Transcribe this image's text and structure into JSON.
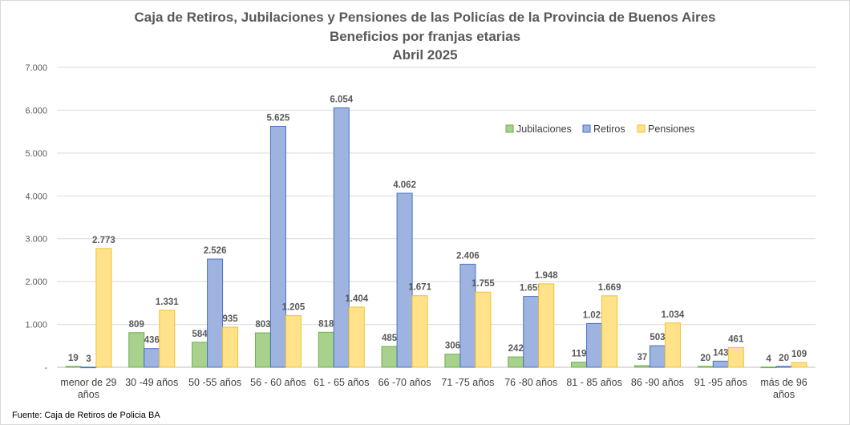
{
  "chart_data": {
    "type": "bar",
    "title": [
      "Caja de Retiros, Jubilaciones y Pensiones de las Policías de la Provincia de Buenos Aires",
      "Beneficios por franjas etarias",
      "Abril 2025"
    ],
    "categories": [
      [
        "menor de 29",
        "años"
      ],
      [
        "30 -49 años"
      ],
      [
        "50 -55 años"
      ],
      [
        "56 - 60 años"
      ],
      [
        "61 - 65 años"
      ],
      [
        "66 -70 años"
      ],
      [
        "71 -75 años"
      ],
      [
        "76 -80 años"
      ],
      [
        "81 - 85 años"
      ],
      [
        "86 -90 años"
      ],
      [
        "91 -95 años"
      ],
      [
        "más de 96",
        "años"
      ]
    ],
    "series": [
      {
        "name": "Jubilaciones",
        "color": "#a9d18e",
        "stroke": "#70ad47",
        "values": [
          19,
          809,
          584,
          803,
          818,
          485,
          306,
          242,
          119,
          37,
          20,
          4
        ],
        "labels": [
          "19",
          "809",
          "584",
          "803",
          "818",
          "485",
          "306",
          "242",
          "119",
          "37",
          "20",
          "4"
        ]
      },
      {
        "name": "Retiros",
        "color": "#9fb3e0",
        "stroke": "#4472c4",
        "values": [
          3,
          436,
          2526,
          5625,
          6054,
          4062,
          2406,
          1655,
          1022,
          503,
          143,
          20
        ],
        "labels": [
          "3",
          "436",
          "2.526",
          "5.625",
          "6.054",
          "4.062",
          "2.406",
          "1.655",
          "1.022",
          "503",
          "143",
          "20"
        ]
      },
      {
        "name": "Pensiones",
        "color": "#ffe28a",
        "stroke": "#f2c12e",
        "values": [
          2773,
          1331,
          935,
          1205,
          1404,
          1671,
          1755,
          1948,
          1669,
          1034,
          461,
          109
        ],
        "labels": [
          "2.773",
          "1.331",
          "935",
          "1.205",
          "1.404",
          "1.671",
          "1.755",
          "1.948",
          "1.669",
          "1.034",
          "461",
          "109"
        ]
      }
    ],
    "ylim": [
      0,
      7000
    ],
    "yticks": [
      "-",
      "1.000",
      "2.000",
      "3.000",
      "4.000",
      "5.000",
      "6.000",
      "7.000"
    ],
    "grid": true,
    "legend_position": "top-right",
    "source": "Fuente: Caja de Retiros de Policia BA"
  }
}
